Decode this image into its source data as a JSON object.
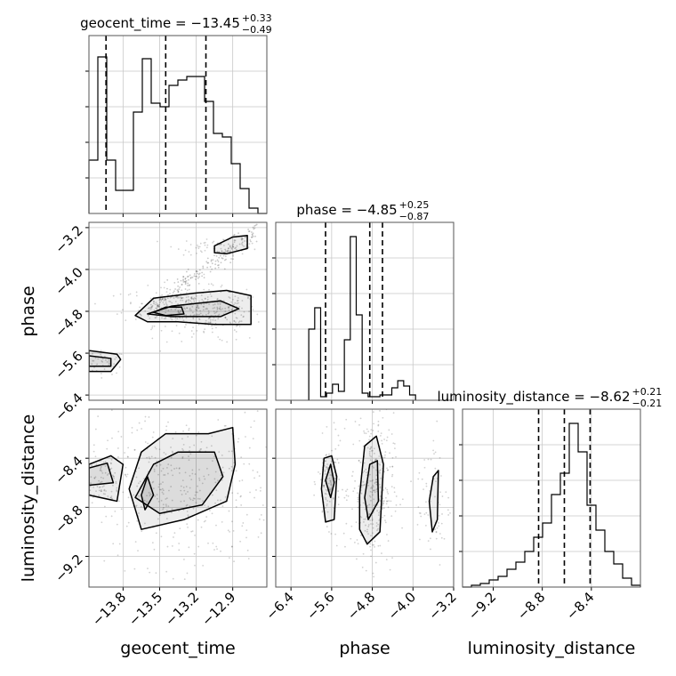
{
  "chart_data": [
    {
      "type": "histogram",
      "param": "geocent_time",
      "title_name": "geocent_time",
      "title_value": "−13.45",
      "err_plus": "+0.33",
      "err_minus": "−0.49",
      "quantiles": [
        -13.94,
        -13.45,
        -13.12
      ],
      "xlim": [
        -14.08,
        -12.62
      ],
      "bins": {
        "start": -14.08,
        "step": 0.073,
        "heights": [
          0.3,
          0.88,
          0.3,
          0.13,
          0.13,
          0.57,
          0.87,
          0.62,
          0.6,
          0.72,
          0.75,
          0.77,
          0.77,
          0.63,
          0.45,
          0.43,
          0.28,
          0.14,
          0.03,
          0.0
        ]
      },
      "gridlines": [
        "-13.8",
        "-13.5",
        "-13.2",
        "-12.9"
      ]
    },
    {
      "type": "histogram",
      "param": "phase",
      "title_name": "phase",
      "title_value": "−4.85",
      "err_plus": "+0.25",
      "err_minus": "−0.87",
      "quantiles": [
        -5.72,
        -4.85,
        -4.6
      ],
      "xlim": [
        -6.7,
        -3.2
      ],
      "bins": {
        "start": -6.05,
        "step": 0.1167,
        "heights": [
          0.4,
          0.52,
          0.02,
          0.04,
          0.09,
          0.05,
          0.34,
          0.92,
          0.48,
          0.04,
          0.02,
          0.02,
          0.03,
          0.03,
          0.07,
          0.11,
          0.08,
          0.03
        ]
      },
      "gridlines": [
        "-6.4",
        "-5.6",
        "-4.8",
        "-4.0"
      ]
    },
    {
      "type": "histogram",
      "param": "luminosity_distance",
      "title_name": "luminosity_distance",
      "title_value": "−8.62",
      "err_plus": "+0.21",
      "err_minus": "−0.21",
      "quantiles": [
        -8.83,
        -8.62,
        -8.41
      ],
      "xlim": [
        -9.45,
        -8.0
      ],
      "bins": {
        "start": -9.45,
        "step": 0.0725,
        "heights": [
          0.0,
          0.01,
          0.02,
          0.04,
          0.06,
          0.1,
          0.14,
          0.2,
          0.28,
          0.36,
          0.52,
          0.64,
          0.92,
          0.76,
          0.46,
          0.32,
          0.2,
          0.13,
          0.05,
          0.01
        ]
      },
      "gridlines": [
        "-9.2",
        "-8.8",
        "-8.4"
      ]
    },
    {
      "type": "scatter",
      "panel": "phase vs geocent_time",
      "x": "geocent_time",
      "y": "phase",
      "xlim": [
        -14.08,
        -12.62
      ],
      "ylim": [
        -6.5,
        -3.1
      ],
      "clusters": [
        {
          "cx": -13.95,
          "cy": -5.78,
          "sx": 0.06,
          "sy": 0.08,
          "n": 50
        },
        {
          "cx": -13.3,
          "cy": -4.7,
          "sx": 0.18,
          "sy": 0.13,
          "n": 250
        },
        {
          "cx": -13.05,
          "cy": -4.92,
          "sx": 0.14,
          "sy": 0.18,
          "n": 150
        },
        {
          "cx": -13.0,
          "cy": -3.55,
          "sx": 0.13,
          "sy": 0.06,
          "n": 60
        }
      ],
      "band": {
        "from": [
          -13.6,
          -4.8
        ],
        "to": [
          -12.7,
          -3.25
        ],
        "width": 0.1,
        "n": 220
      },
      "contours": [
        [
          [
            -14.08,
            -5.55
          ],
          [
            -13.85,
            -5.62
          ],
          [
            -13.82,
            -5.72
          ],
          [
            -13.9,
            -5.95
          ],
          [
            -14.08,
            -5.95
          ]
        ],
        [
          [
            -14.08,
            -5.65
          ],
          [
            -13.9,
            -5.7
          ],
          [
            -13.9,
            -5.85
          ],
          [
            -14.08,
            -5.85
          ]
        ],
        [
          [
            -13.7,
            -4.88
          ],
          [
            -13.55,
            -4.55
          ],
          [
            -13.2,
            -4.45
          ],
          [
            -12.95,
            -4.4
          ],
          [
            -12.75,
            -4.5
          ],
          [
            -12.75,
            -5.05
          ],
          [
            -13.05,
            -5.05
          ],
          [
            -13.35,
            -5.0
          ],
          [
            -13.6,
            -5.0
          ]
        ],
        [
          [
            -13.6,
            -4.85
          ],
          [
            -13.4,
            -4.7
          ],
          [
            -13.2,
            -4.65
          ],
          [
            -13.0,
            -4.6
          ],
          [
            -12.85,
            -4.75
          ],
          [
            -13.0,
            -4.9
          ],
          [
            -13.4,
            -4.9
          ]
        ],
        [
          [
            -13.55,
            -4.82
          ],
          [
            -13.45,
            -4.72
          ],
          [
            -13.32,
            -4.72
          ],
          [
            -13.3,
            -4.85
          ],
          [
            -13.45,
            -4.88
          ]
        ],
        [
          [
            -13.05,
            -3.55
          ],
          [
            -12.9,
            -3.38
          ],
          [
            -12.78,
            -3.35
          ],
          [
            -12.78,
            -3.6
          ],
          [
            -12.95,
            -3.7
          ],
          [
            -13.05,
            -3.68
          ]
        ]
      ],
      "xticks": [
        "-13.8",
        "-13.5",
        "-13.2",
        "-12.9"
      ],
      "yticks": [
        "-3.2",
        "-4.0",
        "-4.8",
        "-5.6",
        "-6.4"
      ]
    },
    {
      "type": "scatter",
      "panel": "luminosity_distance vs geocent_time",
      "x": "geocent_time",
      "y": "luminosity_distance",
      "xlim": [
        -14.08,
        -12.62
      ],
      "ylim": [
        -9.45,
        -8.0
      ],
      "clusters": [
        {
          "cx": -13.98,
          "cy": -8.55,
          "sx": 0.06,
          "sy": 0.09,
          "n": 80
        },
        {
          "cx": -13.35,
          "cy": -8.65,
          "sx": 0.28,
          "sy": 0.22,
          "n": 450
        }
      ],
      "contours": [
        [
          [
            -14.08,
            -8.45
          ],
          [
            -13.9,
            -8.38
          ],
          [
            -13.8,
            -8.45
          ],
          [
            -13.85,
            -8.75
          ],
          [
            -14.08,
            -8.7
          ]
        ],
        [
          [
            -14.08,
            -8.48
          ],
          [
            -13.93,
            -8.44
          ],
          [
            -13.88,
            -8.6
          ],
          [
            -14.08,
            -8.62
          ]
        ],
        [
          [
            -13.75,
            -8.65
          ],
          [
            -13.65,
            -8.35
          ],
          [
            -13.45,
            -8.2
          ],
          [
            -13.1,
            -8.2
          ],
          [
            -12.9,
            -8.15
          ],
          [
            -12.88,
            -8.45
          ],
          [
            -12.95,
            -8.75
          ],
          [
            -13.3,
            -8.9
          ],
          [
            -13.65,
            -8.98
          ]
        ],
        [
          [
            -13.7,
            -8.72
          ],
          [
            -13.55,
            -8.45
          ],
          [
            -13.35,
            -8.35
          ],
          [
            -13.05,
            -8.35
          ],
          [
            -12.98,
            -8.55
          ],
          [
            -13.15,
            -8.78
          ],
          [
            -13.5,
            -8.85
          ]
        ],
        [
          [
            -13.65,
            -8.7
          ],
          [
            -13.6,
            -8.55
          ],
          [
            -13.55,
            -8.7
          ],
          [
            -13.62,
            -8.82
          ]
        ]
      ],
      "xticks": [
        "-13.8",
        "-13.5",
        "-13.2",
        "-12.9"
      ],
      "yticks": [
        "-8.4",
        "-8.8",
        "-9.2"
      ]
    },
    {
      "type": "scatter",
      "panel": "luminosity_distance vs phase",
      "x": "phase",
      "y": "luminosity_distance",
      "xlim": [
        -6.7,
        -3.2
      ],
      "ylim": [
        -9.45,
        -8.0
      ],
      "clusters": [
        {
          "cx": -5.65,
          "cy": -8.6,
          "sx": 0.08,
          "sy": 0.12,
          "n": 120
        },
        {
          "cx": -4.8,
          "cy": -8.65,
          "sx": 0.15,
          "sy": 0.22,
          "n": 320
        },
        {
          "cx": -3.6,
          "cy": -8.75,
          "sx": 0.12,
          "sy": 0.22,
          "n": 70
        }
      ],
      "contours": [
        [
          [
            -5.8,
            -8.65
          ],
          [
            -5.75,
            -8.4
          ],
          [
            -5.6,
            -8.38
          ],
          [
            -5.5,
            -8.55
          ],
          [
            -5.55,
            -8.9
          ],
          [
            -5.72,
            -8.92
          ]
        ],
        [
          [
            -5.72,
            -8.58
          ],
          [
            -5.62,
            -8.45
          ],
          [
            -5.55,
            -8.6
          ],
          [
            -5.62,
            -8.72
          ]
        ],
        [
          [
            -5.05,
            -8.7
          ],
          [
            -4.95,
            -8.3
          ],
          [
            -4.72,
            -8.22
          ],
          [
            -4.58,
            -8.45
          ],
          [
            -4.65,
            -9.0
          ],
          [
            -4.9,
            -9.1
          ],
          [
            -5.05,
            -8.98
          ]
        ],
        [
          [
            -4.95,
            -8.72
          ],
          [
            -4.85,
            -8.45
          ],
          [
            -4.7,
            -8.42
          ],
          [
            -4.68,
            -8.75
          ],
          [
            -4.88,
            -8.9
          ]
        ],
        [
          [
            -3.68,
            -8.75
          ],
          [
            -3.6,
            -8.55
          ],
          [
            -3.5,
            -8.5
          ],
          [
            -3.52,
            -8.9
          ],
          [
            -3.62,
            -9.0
          ]
        ]
      ],
      "xticks": [
        "-6.4",
        "-5.6",
        "-4.8",
        "-4.0",
        "-3.2"
      ],
      "yticks": [
        "-8.4",
        "-8.8",
        "-9.2"
      ]
    }
  ],
  "axis_labels": {
    "x_bottom": [
      "geocent_time",
      "phase",
      "luminosity_distance"
    ],
    "y_left": [
      "phase",
      "luminosity_distance"
    ]
  }
}
